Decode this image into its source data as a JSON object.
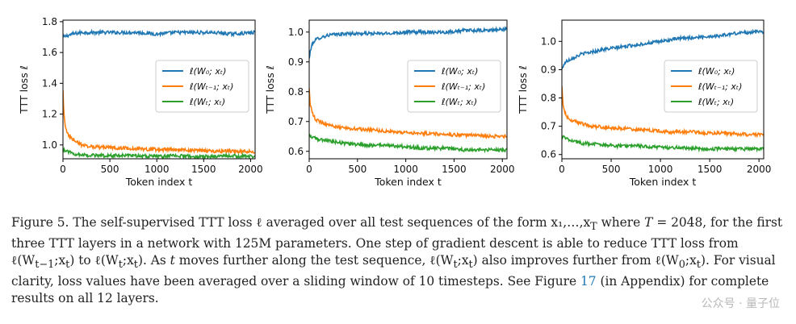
{
  "chart_data": [
    {
      "type": "line",
      "xlabel": "Token index t",
      "ylabel": "TTT loss ℓ",
      "xlim": [
        0,
        2048
      ],
      "ylim": [
        0.91,
        1.81
      ],
      "xticks": [
        0,
        500,
        1000,
        1500,
        2000
      ],
      "yticks": [
        1.0,
        1.2,
        1.4,
        1.6,
        1.8
      ],
      "ytick_labels": [
        "1.0",
        "1.2",
        "1.4",
        "1.6",
        "1.8"
      ],
      "legend": "upper-right",
      "series": [
        {
          "name": "ℓ(W₀; xₜ)",
          "color": "#1f77b4",
          "x": [
            0,
            50,
            100,
            200,
            400,
            600,
            800,
            1000,
            1200,
            1400,
            1600,
            1800,
            2048
          ],
          "y": [
            1.7,
            1.71,
            1.72,
            1.73,
            1.73,
            1.73,
            1.73,
            1.72,
            1.73,
            1.73,
            1.73,
            1.72,
            1.73
          ]
        },
        {
          "name": "ℓ(Wₜ₋₁; xₜ)",
          "color": "#ff7f0e",
          "x": [
            0,
            10,
            30,
            60,
            100,
            150,
            200,
            300,
            400,
            600,
            800,
            1000,
            1200,
            1400,
            1600,
            1800,
            2048
          ],
          "y": [
            1.35,
            1.2,
            1.1,
            1.06,
            1.04,
            1.02,
            1.0,
            0.99,
            0.985,
            0.98,
            0.975,
            0.97,
            0.97,
            0.965,
            0.96,
            0.96,
            0.955
          ]
        },
        {
          "name": "ℓ(Wₜ; xₜ)",
          "color": "#2ca02c",
          "x": [
            0,
            50,
            100,
            200,
            400,
            600,
            800,
            1000,
            1200,
            1400,
            1600,
            1800,
            2048
          ],
          "y": [
            0.97,
            0.955,
            0.945,
            0.935,
            0.93,
            0.93,
            0.93,
            0.925,
            0.93,
            0.925,
            0.925,
            0.93,
            0.925
          ]
        }
      ]
    },
    {
      "type": "line",
      "xlabel": "Token index t",
      "ylabel": "TTT loss ℓ",
      "xlim": [
        0,
        2048
      ],
      "ylim": [
        0.575,
        1.04
      ],
      "xticks": [
        0,
        500,
        1000,
        1500,
        2000
      ],
      "yticks": [
        0.6,
        0.7,
        0.8,
        0.9,
        1.0
      ],
      "ytick_labels": [
        "0.6",
        "0.7",
        "0.8",
        "0.9",
        "1.0"
      ],
      "legend": "upper-right",
      "series": [
        {
          "name": "ℓ(W₀; xₜ)",
          "color": "#1f77b4",
          "x": [
            0,
            20,
            50,
            100,
            200,
            400,
            600,
            800,
            1000,
            1200,
            1400,
            1600,
            1800,
            2048
          ],
          "y": [
            0.91,
            0.95,
            0.97,
            0.98,
            0.99,
            0.995,
            0.995,
            0.995,
            1.0,
            1.0,
            1.0,
            1.005,
            1.005,
            1.01
          ]
        },
        {
          "name": "ℓ(Wₜ₋₁; xₜ)",
          "color": "#ff7f0e",
          "x": [
            0,
            10,
            30,
            60,
            100,
            200,
            300,
            500,
            700,
            900,
            1100,
            1300,
            1500,
            1700,
            1900,
            2048
          ],
          "y": [
            0.81,
            0.76,
            0.73,
            0.71,
            0.7,
            0.69,
            0.68,
            0.675,
            0.67,
            0.665,
            0.66,
            0.66,
            0.655,
            0.655,
            0.65,
            0.65
          ]
        },
        {
          "name": "ℓ(Wₜ; xₜ)",
          "color": "#2ca02c",
          "x": [
            0,
            50,
            100,
            200,
            400,
            600,
            800,
            1000,
            1200,
            1400,
            1600,
            1800,
            2048
          ],
          "y": [
            0.655,
            0.645,
            0.64,
            0.635,
            0.625,
            0.62,
            0.62,
            0.615,
            0.61,
            0.61,
            0.605,
            0.605,
            0.605
          ]
        }
      ]
    },
    {
      "type": "line",
      "xlabel": "Token index t",
      "ylabel": "TTT loss ℓ",
      "xlim": [
        0,
        2048
      ],
      "ylim": [
        0.585,
        1.075
      ],
      "xticks": [
        0,
        500,
        1000,
        1500,
        2000
      ],
      "yticks": [
        0.6,
        0.7,
        0.8,
        0.9,
        1.0
      ],
      "ytick_labels": [
        "0.6",
        "0.7",
        "0.8",
        "0.9",
        "1.0"
      ],
      "legend": "upper-right",
      "series": [
        {
          "name": "ℓ(W₀; xₜ)",
          "color": "#1f77b4",
          "x": [
            0,
            20,
            50,
            100,
            200,
            400,
            600,
            800,
            1000,
            1200,
            1400,
            1600,
            1800,
            2048
          ],
          "y": [
            0.9,
            0.92,
            0.93,
            0.94,
            0.955,
            0.97,
            0.98,
            0.99,
            1.0,
            1.01,
            1.015,
            1.02,
            1.03,
            1.035
          ]
        },
        {
          "name": "ℓ(Wₜ₋₁; xₜ)",
          "color": "#ff7f0e",
          "x": [
            0,
            10,
            30,
            60,
            100,
            200,
            300,
            500,
            700,
            900,
            1100,
            1300,
            1500,
            1700,
            1900,
            2048
          ],
          "y": [
            0.84,
            0.78,
            0.75,
            0.73,
            0.72,
            0.71,
            0.7,
            0.695,
            0.69,
            0.685,
            0.68,
            0.68,
            0.675,
            0.675,
            0.67,
            0.67
          ]
        },
        {
          "name": "ℓ(Wₜ; xₜ)",
          "color": "#2ca02c",
          "x": [
            0,
            50,
            100,
            200,
            400,
            600,
            800,
            1000,
            1200,
            1400,
            1600,
            1800,
            2048
          ],
          "y": [
            0.665,
            0.655,
            0.65,
            0.64,
            0.635,
            0.63,
            0.63,
            0.625,
            0.625,
            0.62,
            0.62,
            0.62,
            0.62
          ]
        }
      ]
    }
  ],
  "caption": {
    "p1": "Figure 5. The self-supervised TTT loss ℓ averaged over all test sequences of the form x₁,…,x",
    "p1_sub": "T",
    "p1b": " where ",
    "p1_T": "T",
    "p1c": " = 2048, for the first three TTT layers in a network with 125M parameters. One step of gradient descent is able to reduce TTT loss from ℓ(W",
    "p1_sub2": "t−1",
    "p1d": ";x",
    "p1_sub3": "t",
    "p1e": ") to ℓ(W",
    "p1_sub4": "t",
    "p1f": ";x",
    "p1_sub5": "t",
    "p1g": "). As ",
    "p1_t": "t",
    "p1h": " moves further along the test sequence, ℓ(W",
    "p1_sub6": "t",
    "p1i": ";x",
    "p1_sub7": "t",
    "p1j": ") also improves further from ℓ(W",
    "p1_sub8": "0",
    "p1k": ";x",
    "p1_sub9": "t",
    "p1l": "). For visual clarity, loss values have been averaged over a sliding window of 10 timesteps. See Figure ",
    "ref": "17",
    "p1m": " (in Appendix) for complete results on all 12 layers."
  },
  "watermark": "公众号 · 量子位"
}
